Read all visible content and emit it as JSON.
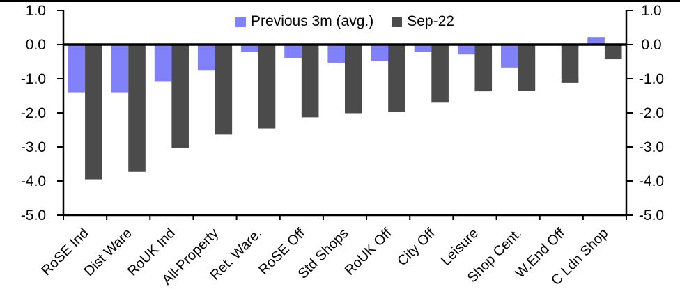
{
  "chart_data": {
    "type": "bar",
    "title": "",
    "xlabel": "",
    "ylabel": "",
    "categories": [
      "RoSE Ind",
      "Dist Ware",
      "RoUK Ind",
      "All-Property",
      "Ret. Ware.",
      "RoSE Off",
      "Std Shops",
      "RoUK Off",
      "City Off",
      "Leisure",
      "Shop Cent.",
      "W.End Off",
      "C Ldn Shop"
    ],
    "series": [
      {
        "name": "Previous 3m (avg.)",
        "color": "#8181F9",
        "values": [
          -1.4,
          -1.4,
          -1.09,
          -0.76,
          -0.21,
          -0.4,
          -0.53,
          -0.47,
          -0.21,
          -0.29,
          -0.67,
          0.0,
          0.22
        ]
      },
      {
        "name": "Sep-22",
        "color": "#4B4B4B",
        "values": [
          -3.95,
          -3.73,
          -3.03,
          -2.64,
          -2.46,
          -2.13,
          -2.01,
          -1.98,
          -1.7,
          -1.37,
          -1.35,
          -1.12,
          -0.43
        ]
      }
    ],
    "ylim": [
      -5.0,
      1.0
    ],
    "yticks": [
      1.0,
      0.0,
      -1.0,
      -2.0,
      -3.0,
      -4.0,
      -5.0
    ],
    "ytick_labels": [
      "1.0",
      "0.0",
      "-1.0",
      "-2.0",
      "-3.0",
      "-4.0",
      "-5.0"
    ],
    "dual_axis_labels": true,
    "grid": false,
    "legend_position": "top-center",
    "zero_line": true,
    "axis_color": "#000000",
    "background_color": "#FFFFFF"
  }
}
